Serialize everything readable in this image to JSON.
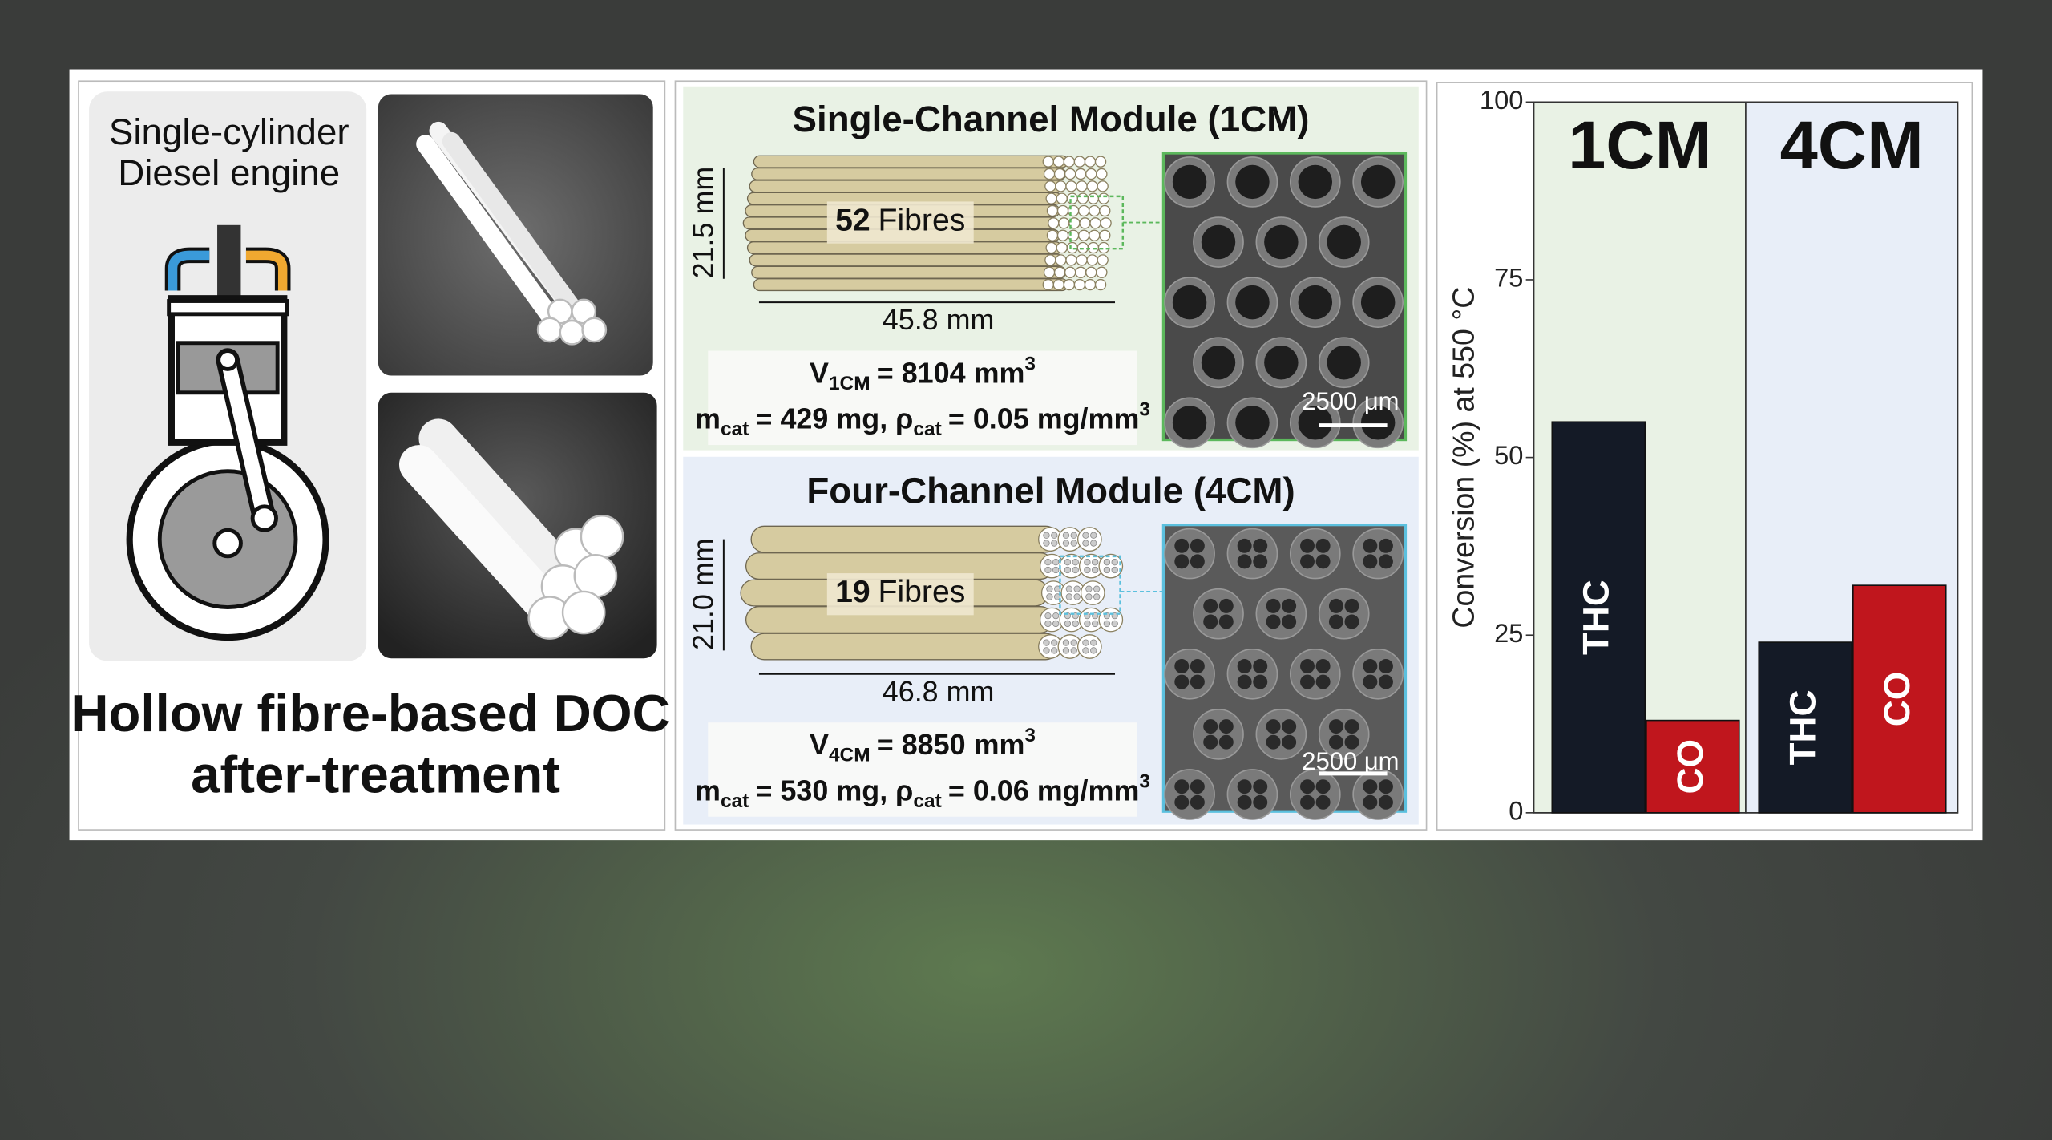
{
  "left_panel": {
    "engine_label": [
      "Single-cylinder",
      "Diesel engine"
    ],
    "title": [
      "Hollow fibre-based DOC",
      "after-treatment"
    ]
  },
  "modules": [
    {
      "title": "Single-Channel Module (1CM)",
      "height": "21.5 mm",
      "length": "45.8 mm",
      "fibre_count": "52",
      "fibre_label": "Fibres",
      "volume": [
        "V",
        "1CM",
        "= 8104 mm",
        "3"
      ],
      "mass": [
        "m",
        "cat",
        "= 429 mg, ρ",
        "cat",
        "= 0.05 mg/mm",
        "3"
      ],
      "scale": "2500 μm"
    },
    {
      "title": "Four-Channel Module (4CM)",
      "height": "21.0 mm",
      "length": "46.8 mm",
      "fibre_count": "19",
      "fibre_label": "Fibres",
      "volume": [
        "V",
        "4CM",
        "= 8850 mm",
        "3"
      ],
      "mass": [
        "m",
        "cat",
        "= 530 mg, ρ",
        "cat",
        "= 0.06 mg/mm",
        "3"
      ],
      "scale": "2500 μm"
    }
  ],
  "chart_data": {
    "type": "bar",
    "y_label": "Conversion (%) at 550 °C",
    "categories": [
      "1CM",
      "4CM"
    ],
    "category_backgrounds": [
      "#e9f2e5",
      "#e8eef8"
    ],
    "series": [
      {
        "name": "THC",
        "color": "#141a26",
        "values": [
          55,
          24
        ]
      },
      {
        "name": "CO",
        "color": "#c0161d",
        "values": [
          13,
          32
        ]
      }
    ],
    "ylim": [
      0,
      100
    ],
    "yticks": [
      0,
      25,
      50,
      75,
      100
    ]
  }
}
